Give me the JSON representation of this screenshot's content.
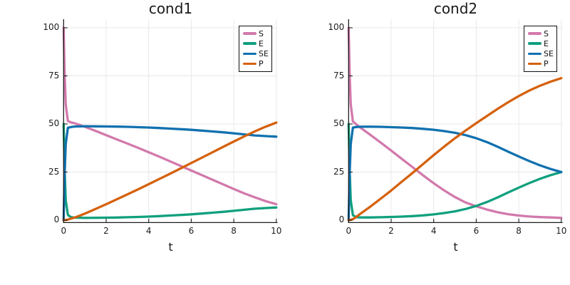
{
  "figure": {
    "background": "#ffffff"
  },
  "colors": {
    "grid": "#e8e8e8",
    "axis": "#1d1d1d",
    "text": "#1a1a1a",
    "legend_border": "#111111"
  },
  "chart_data": [
    {
      "type": "line",
      "title": "cond1",
      "xlabel": "t",
      "xlim": [
        0,
        10
      ],
      "ylim": [
        0,
        104
      ],
      "x_ticks": [
        0,
        2,
        4,
        6,
        8,
        10
      ],
      "y_ticks": [
        0,
        25,
        50,
        75,
        100
      ],
      "grid": true,
      "legend_position": "top-right",
      "x": [
        0,
        0.05,
        0.1,
        0.2,
        0.35,
        0.5,
        0.75,
        1,
        1.5,
        2,
        2.5,
        3,
        3.5,
        4,
        4.5,
        5,
        5.5,
        6,
        6.5,
        7,
        7.5,
        8,
        8.5,
        9,
        9.5,
        10
      ],
      "series": [
        {
          "name": "S",
          "color": "#D279AC",
          "values": [
            100,
            75,
            60,
            51.5,
            50.8,
            50.4,
            49.5,
            48.5,
            46.4,
            44.2,
            42,
            39.8,
            37.6,
            35.3,
            33,
            30.6,
            28.2,
            25.8,
            23.4,
            21,
            18.6,
            16.2,
            13.9,
            11.8,
            9.9,
            8.3
          ]
        },
        {
          "name": "E",
          "color": "#10A07E",
          "values": [
            50,
            25.2,
            10.2,
            2.7,
            1.6,
            1.35,
            1.25,
            1.2,
            1.22,
            1.28,
            1.38,
            1.5,
            1.65,
            1.85,
            2.1,
            2.4,
            2.7,
            3.05,
            3.45,
            3.9,
            4.35,
            4.85,
            5.4,
            5.95,
            6.3,
            6.6
          ]
        },
        {
          "name": "SE",
          "color": "#1171AF",
          "values": [
            0,
            24.8,
            39.8,
            48,
            48.4,
            48.65,
            48.75,
            48.8,
            48.78,
            48.72,
            48.62,
            48.5,
            48.35,
            48.15,
            47.9,
            47.6,
            47.3,
            46.95,
            46.55,
            46.1,
            45.65,
            45.15,
            44.6,
            44.05,
            43.7,
            43.4
          ]
        },
        {
          "name": "P",
          "color": "#D5610D",
          "values": [
            0,
            0.05,
            0.1,
            0.3,
            0.8,
            1.3,
            2.3,
            3.4,
            5.8,
            8.3,
            10.8,
            13.4,
            16,
            18.7,
            21.4,
            24.1,
            26.9,
            29.7,
            32.5,
            35.3,
            38.1,
            40.9,
            43.6,
            46.2,
            48.6,
            50.7
          ]
        }
      ]
    },
    {
      "type": "line",
      "title": "cond2",
      "xlabel": "t",
      "xlim": [
        0,
        10
      ],
      "ylim": [
        0,
        104
      ],
      "x_ticks": [
        0,
        2,
        4,
        6,
        8,
        10
      ],
      "y_ticks": [
        0,
        25,
        50,
        75,
        100
      ],
      "grid": true,
      "legend_position": "top-right",
      "x": [
        0,
        0.05,
        0.1,
        0.2,
        0.35,
        0.5,
        0.75,
        1,
        1.5,
        2,
        2.5,
        3,
        3.5,
        4,
        4.5,
        5,
        5.5,
        6,
        6.5,
        7,
        7.5,
        8,
        8.5,
        9,
        9.5,
        10
      ],
      "series": [
        {
          "name": "S",
          "color": "#D279AC",
          "values": [
            100,
            75,
            60,
            51.3,
            49.9,
            48.5,
            46.5,
            44.5,
            40.4,
            36.2,
            31.9,
            27.6,
            23.3,
            19.2,
            15.4,
            12,
            9.2,
            7.2,
            5.5,
            4.1,
            3.1,
            2.4,
            1.9,
            1.6,
            1.4,
            1.2
          ]
        },
        {
          "name": "E",
          "color": "#10A07E",
          "values": [
            50,
            25.2,
            10.3,
            2.6,
            1.6,
            1.45,
            1.4,
            1.4,
            1.5,
            1.65,
            1.85,
            2.1,
            2.5,
            3,
            3.7,
            4.6,
            5.8,
            7.4,
            9.4,
            11.8,
            14.4,
            16.9,
            19.3,
            21.5,
            23.4,
            25
          ]
        },
        {
          "name": "SE",
          "color": "#1171AF",
          "values": [
            0,
            24.8,
            39.7,
            48.1,
            48.4,
            48.55,
            48.6,
            48.6,
            48.5,
            48.35,
            48.15,
            47.9,
            47.5,
            47,
            46.3,
            45.4,
            44.2,
            42.6,
            40.6,
            38.2,
            35.6,
            33.1,
            30.7,
            28.5,
            26.6,
            25
          ]
        },
        {
          "name": "P",
          "color": "#D5610D",
          "values": [
            0,
            0.05,
            0.15,
            0.5,
            1.6,
            2.9,
            4.9,
            6.9,
            11.1,
            15.4,
            20,
            24.5,
            29.2,
            33.8,
            38.3,
            42.6,
            46.6,
            50.4,
            54.1,
            57.8,
            61.3,
            64.5,
            67.4,
            69.9,
            72,
            73.8
          ]
        }
      ]
    }
  ]
}
